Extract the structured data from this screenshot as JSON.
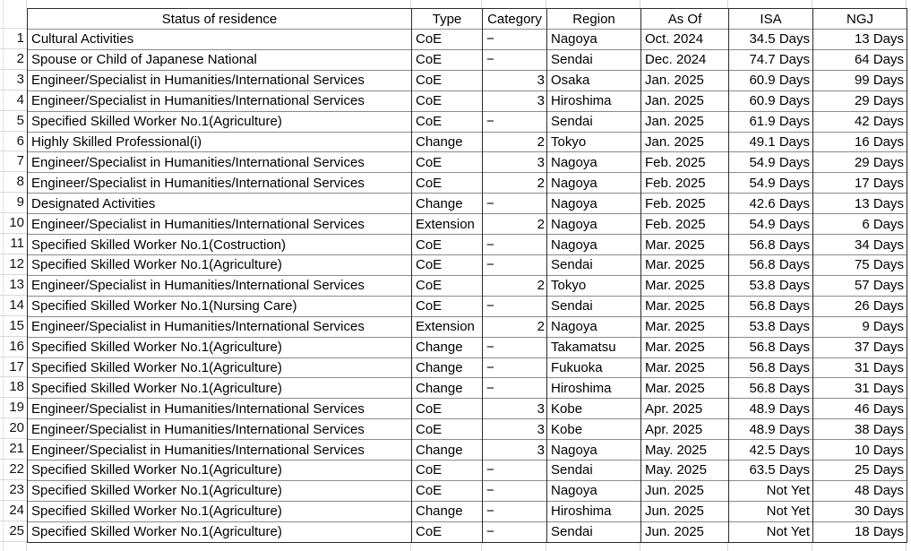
{
  "table": {
    "headers": {
      "status": "Status of residence",
      "type": "Type",
      "category": "Category",
      "region": "Region",
      "as_of": "As Of",
      "isa": "ISA",
      "ngj": "NGJ"
    },
    "rows": [
      {
        "num": "1",
        "status": "Cultural Activities",
        "type": "CoE",
        "category": "−",
        "region": "Nagoya",
        "as_of": "Oct. 2024",
        "isa": "34.5 Days",
        "ngj": "13 Days"
      },
      {
        "num": "2",
        "status": "Spouse or Child of Japanese National",
        "type": "CoE",
        "category": "−",
        "region": "Sendai",
        "as_of": "Dec. 2024",
        "isa": "74.7 Days",
        "ngj": "64 Days"
      },
      {
        "num": "3",
        "status": "Engineer/Specialist in Humanities/International Services",
        "type": "CoE",
        "category": "3",
        "region": "Osaka",
        "as_of": "Jan. 2025",
        "isa": "60.9 Days",
        "ngj": "99 Days"
      },
      {
        "num": "4",
        "status": "Engineer/Specialist in Humanities/International Services",
        "type": "CoE",
        "category": "3",
        "region": "Hiroshima",
        "as_of": "Jan. 2025",
        "isa": "60.9 Days",
        "ngj": "29 Days"
      },
      {
        "num": "5",
        "status": "Specified Skilled Worker No.1(Agriculture)",
        "type": "CoE",
        "category": "−",
        "region": "Sendai",
        "as_of": "Jan. 2025",
        "isa": "61.9 Days",
        "ngj": "42 Days"
      },
      {
        "num": "6",
        "status": "Highly Skilled Professional(i)",
        "type": "Change",
        "category": "2",
        "region": "Tokyo",
        "as_of": "Jan. 2025",
        "isa": "49.1 Days",
        "ngj": "16 Days"
      },
      {
        "num": "7",
        "status": "Engineer/Specialist in Humanities/International Services",
        "type": "CoE",
        "category": "3",
        "region": "Nagoya",
        "as_of": "Feb. 2025",
        "isa": "54.9 Days",
        "ngj": "29 Days"
      },
      {
        "num": "8",
        "status": "Engineer/Specialist in Humanities/International Services",
        "type": "CoE",
        "category": "2",
        "region": "Nagoya",
        "as_of": "Feb. 2025",
        "isa": "54.9 Days",
        "ngj": "17 Days"
      },
      {
        "num": "9",
        "status": "Designated Activities",
        "type": "Change",
        "category": "−",
        "region": "Nagoya",
        "as_of": "Feb. 2025",
        "isa": "42.6 Days",
        "ngj": "13 Days"
      },
      {
        "num": "10",
        "status": "Engineer/Specialist in Humanities/International Services",
        "type": "Extension",
        "category": "2",
        "region": "Nagoya",
        "as_of": "Feb. 2025",
        "isa": "54.9 Days",
        "ngj": "6 Days"
      },
      {
        "num": "11",
        "status": "Specified Skilled Worker No.1(Costruction)",
        "type": "CoE",
        "category": "−",
        "region": "Nagoya",
        "as_of": "Mar. 2025",
        "isa": "56.8 Days",
        "ngj": "34 Days"
      },
      {
        "num": "12",
        "status": "Specified Skilled Worker No.1(Agriculture)",
        "type": "CoE",
        "category": "−",
        "region": "Sendai",
        "as_of": "Mar. 2025",
        "isa": "56.8 Days",
        "ngj": "75 Days"
      },
      {
        "num": "13",
        "status": "Engineer/Specialist in Humanities/International Services",
        "type": "CoE",
        "category": "2",
        "region": "Tokyo",
        "as_of": "Mar. 2025",
        "isa": "53.8 Days",
        "ngj": "57 Days"
      },
      {
        "num": "14",
        "status": "Specified Skilled Worker No.1(Nursing Care)",
        "type": "CoE",
        "category": "−",
        "region": "Sendai",
        "as_of": "Mar. 2025",
        "isa": "56.8 Days",
        "ngj": "26 Days"
      },
      {
        "num": "15",
        "status": "Engineer/Specialist in Humanities/International Services",
        "type": "Extension",
        "category": "2",
        "region": "Nagoya",
        "as_of": "Mar. 2025",
        "isa": "53.8 Days",
        "ngj": "9 Days"
      },
      {
        "num": "16",
        "status": "Specified Skilled Worker No.1(Agriculture)",
        "type": "Change",
        "category": "−",
        "region": "Takamatsu",
        "as_of": "Mar. 2025",
        "isa": "56.8 Days",
        "ngj": "37 Days"
      },
      {
        "num": "17",
        "status": "Specified Skilled Worker No.1(Agriculture)",
        "type": "Change",
        "category": "−",
        "region": "Fukuoka",
        "as_of": "Mar. 2025",
        "isa": "56.8 Days",
        "ngj": "31 Days"
      },
      {
        "num": "18",
        "status": "Specified Skilled Worker No.1(Agriculture)",
        "type": "Change",
        "category": "−",
        "region": "Hiroshima",
        "as_of": "Mar. 2025",
        "isa": "56.8 Days",
        "ngj": "31 Days"
      },
      {
        "num": "19",
        "status": "Engineer/Specialist in Humanities/International Services",
        "type": "CoE",
        "category": "3",
        "region": "Kobe",
        "as_of": "Apr. 2025",
        "isa": "48.9 Days",
        "ngj": "46 Days"
      },
      {
        "num": "20",
        "status": "Engineer/Specialist in Humanities/International Services",
        "type": "CoE",
        "category": "3",
        "region": "Kobe",
        "as_of": "Apr. 2025",
        "isa": "48.9 Days",
        "ngj": "38 Days"
      },
      {
        "num": "21",
        "status": "Engineer/Specialist in Humanities/International Services",
        "type": "Change",
        "category": "3",
        "region": "Nagoya",
        "as_of": "May. 2025",
        "isa": "42.5 Days",
        "ngj": "10 Days"
      },
      {
        "num": "22",
        "status": "Specified Skilled Worker No.1(Agriculture)",
        "type": "CoE",
        "category": "−",
        "region": "Sendai",
        "as_of": "May. 2025",
        "isa": "63.5 Days",
        "ngj": "25 Days"
      },
      {
        "num": "23",
        "status": "Specified Skilled Worker No.1(Agriculture)",
        "type": "CoE",
        "category": "−",
        "region": "Nagoya",
        "as_of": "Jun. 2025",
        "isa": "Not Yet",
        "ngj": "48 Days"
      },
      {
        "num": "24",
        "status": "Specified Skilled Worker No.1(Agriculture)",
        "type": "Change",
        "category": "−",
        "region": "Hiroshima",
        "as_of": "Jun. 2025",
        "isa": "Not Yet",
        "ngj": "30 Days"
      },
      {
        "num": "25",
        "status": "Specified Skilled Worker No.1(Agriculture)",
        "type": "CoE",
        "category": "−",
        "region": "Sendai",
        "as_of": "Jun. 2025",
        "isa": "Not Yet",
        "ngj": "18 Days"
      }
    ]
  },
  "colors": {
    "table_border": "#2b2b2b",
    "row_divider": "#8a8a8a",
    "sheet_gridline": "#d8d8d8",
    "text": "#000000",
    "background": "#ffffff"
  }
}
